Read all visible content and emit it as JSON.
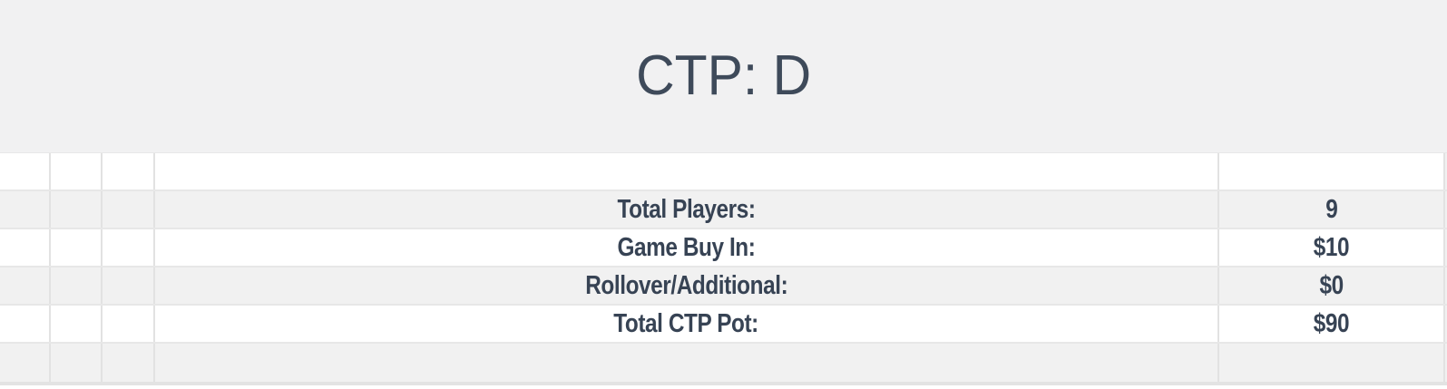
{
  "header": {
    "title": "CTP: D"
  },
  "table": {
    "rows": [
      {
        "label": "",
        "value": ""
      },
      {
        "label": "Total Players:",
        "value": "9"
      },
      {
        "label": "Game Buy In:",
        "value": "$10"
      },
      {
        "label": "Rollover/Additional:",
        "value": "$0"
      },
      {
        "label": "Total CTP Pot:",
        "value": "$90"
      },
      {
        "label": "",
        "value": ""
      }
    ]
  },
  "colors": {
    "header_background": "#f1f1f2",
    "row_alt_background": "#f1f1f1",
    "gridline": "#e2e2e2",
    "bottom_border": "#e3e3e3",
    "title_text": "#3e4a5a",
    "table_text": "#374354"
  }
}
